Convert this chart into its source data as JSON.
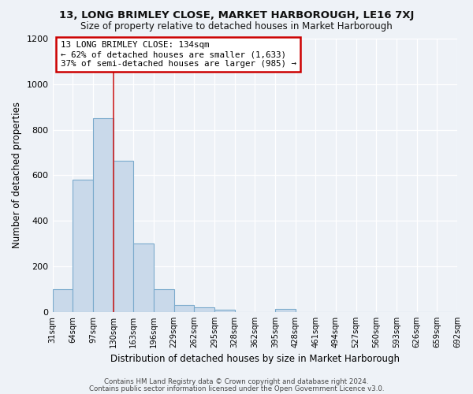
{
  "title": "13, LONG BRIMLEY CLOSE, MARKET HARBOROUGH, LE16 7XJ",
  "subtitle": "Size of property relative to detached houses in Market Harborough",
  "xlabel": "Distribution of detached houses by size in Market Harborough",
  "ylabel": "Number of detached properties",
  "footer_line1": "Contains HM Land Registry data © Crown copyright and database right 2024.",
  "footer_line2": "Contains public sector information licensed under the Open Government Licence v3.0.",
  "bar_heights": [
    100,
    580,
    850,
    665,
    300,
    100,
    30,
    20,
    10,
    0,
    0,
    15,
    0,
    0,
    0,
    0,
    0,
    0,
    0,
    0
  ],
  "bar_color": "#c9d9ea",
  "bar_edge_color": "#7aaacc",
  "vline_position": 3,
  "vline_color": "#cc2222",
  "annotation_title": "13 LONG BRIMLEY CLOSE: 134sqm",
  "annotation_line2": "← 62% of detached houses are smaller (1,633)",
  "annotation_line3": "37% of semi-detached houses are larger (985) →",
  "annotation_box_color": "#ffffff",
  "annotation_border_color": "#cc0000",
  "ylim": [
    0,
    1200
  ],
  "yticks": [
    0,
    200,
    400,
    600,
    800,
    1000,
    1200
  ],
  "tick_labels": [
    "31sqm",
    "64sqm",
    "97sqm",
    "130sqm",
    "163sqm",
    "196sqm",
    "229sqm",
    "262sqm",
    "295sqm",
    "328sqm",
    "362sqm",
    "395sqm",
    "428sqm",
    "461sqm",
    "494sqm",
    "527sqm",
    "560sqm",
    "593sqm",
    "626sqm",
    "659sqm",
    "692sqm"
  ],
  "bg_color": "#eef2f7",
  "grid_color": "#ffffff",
  "title_fontsize": 9.5,
  "subtitle_fontsize": 8.5
}
